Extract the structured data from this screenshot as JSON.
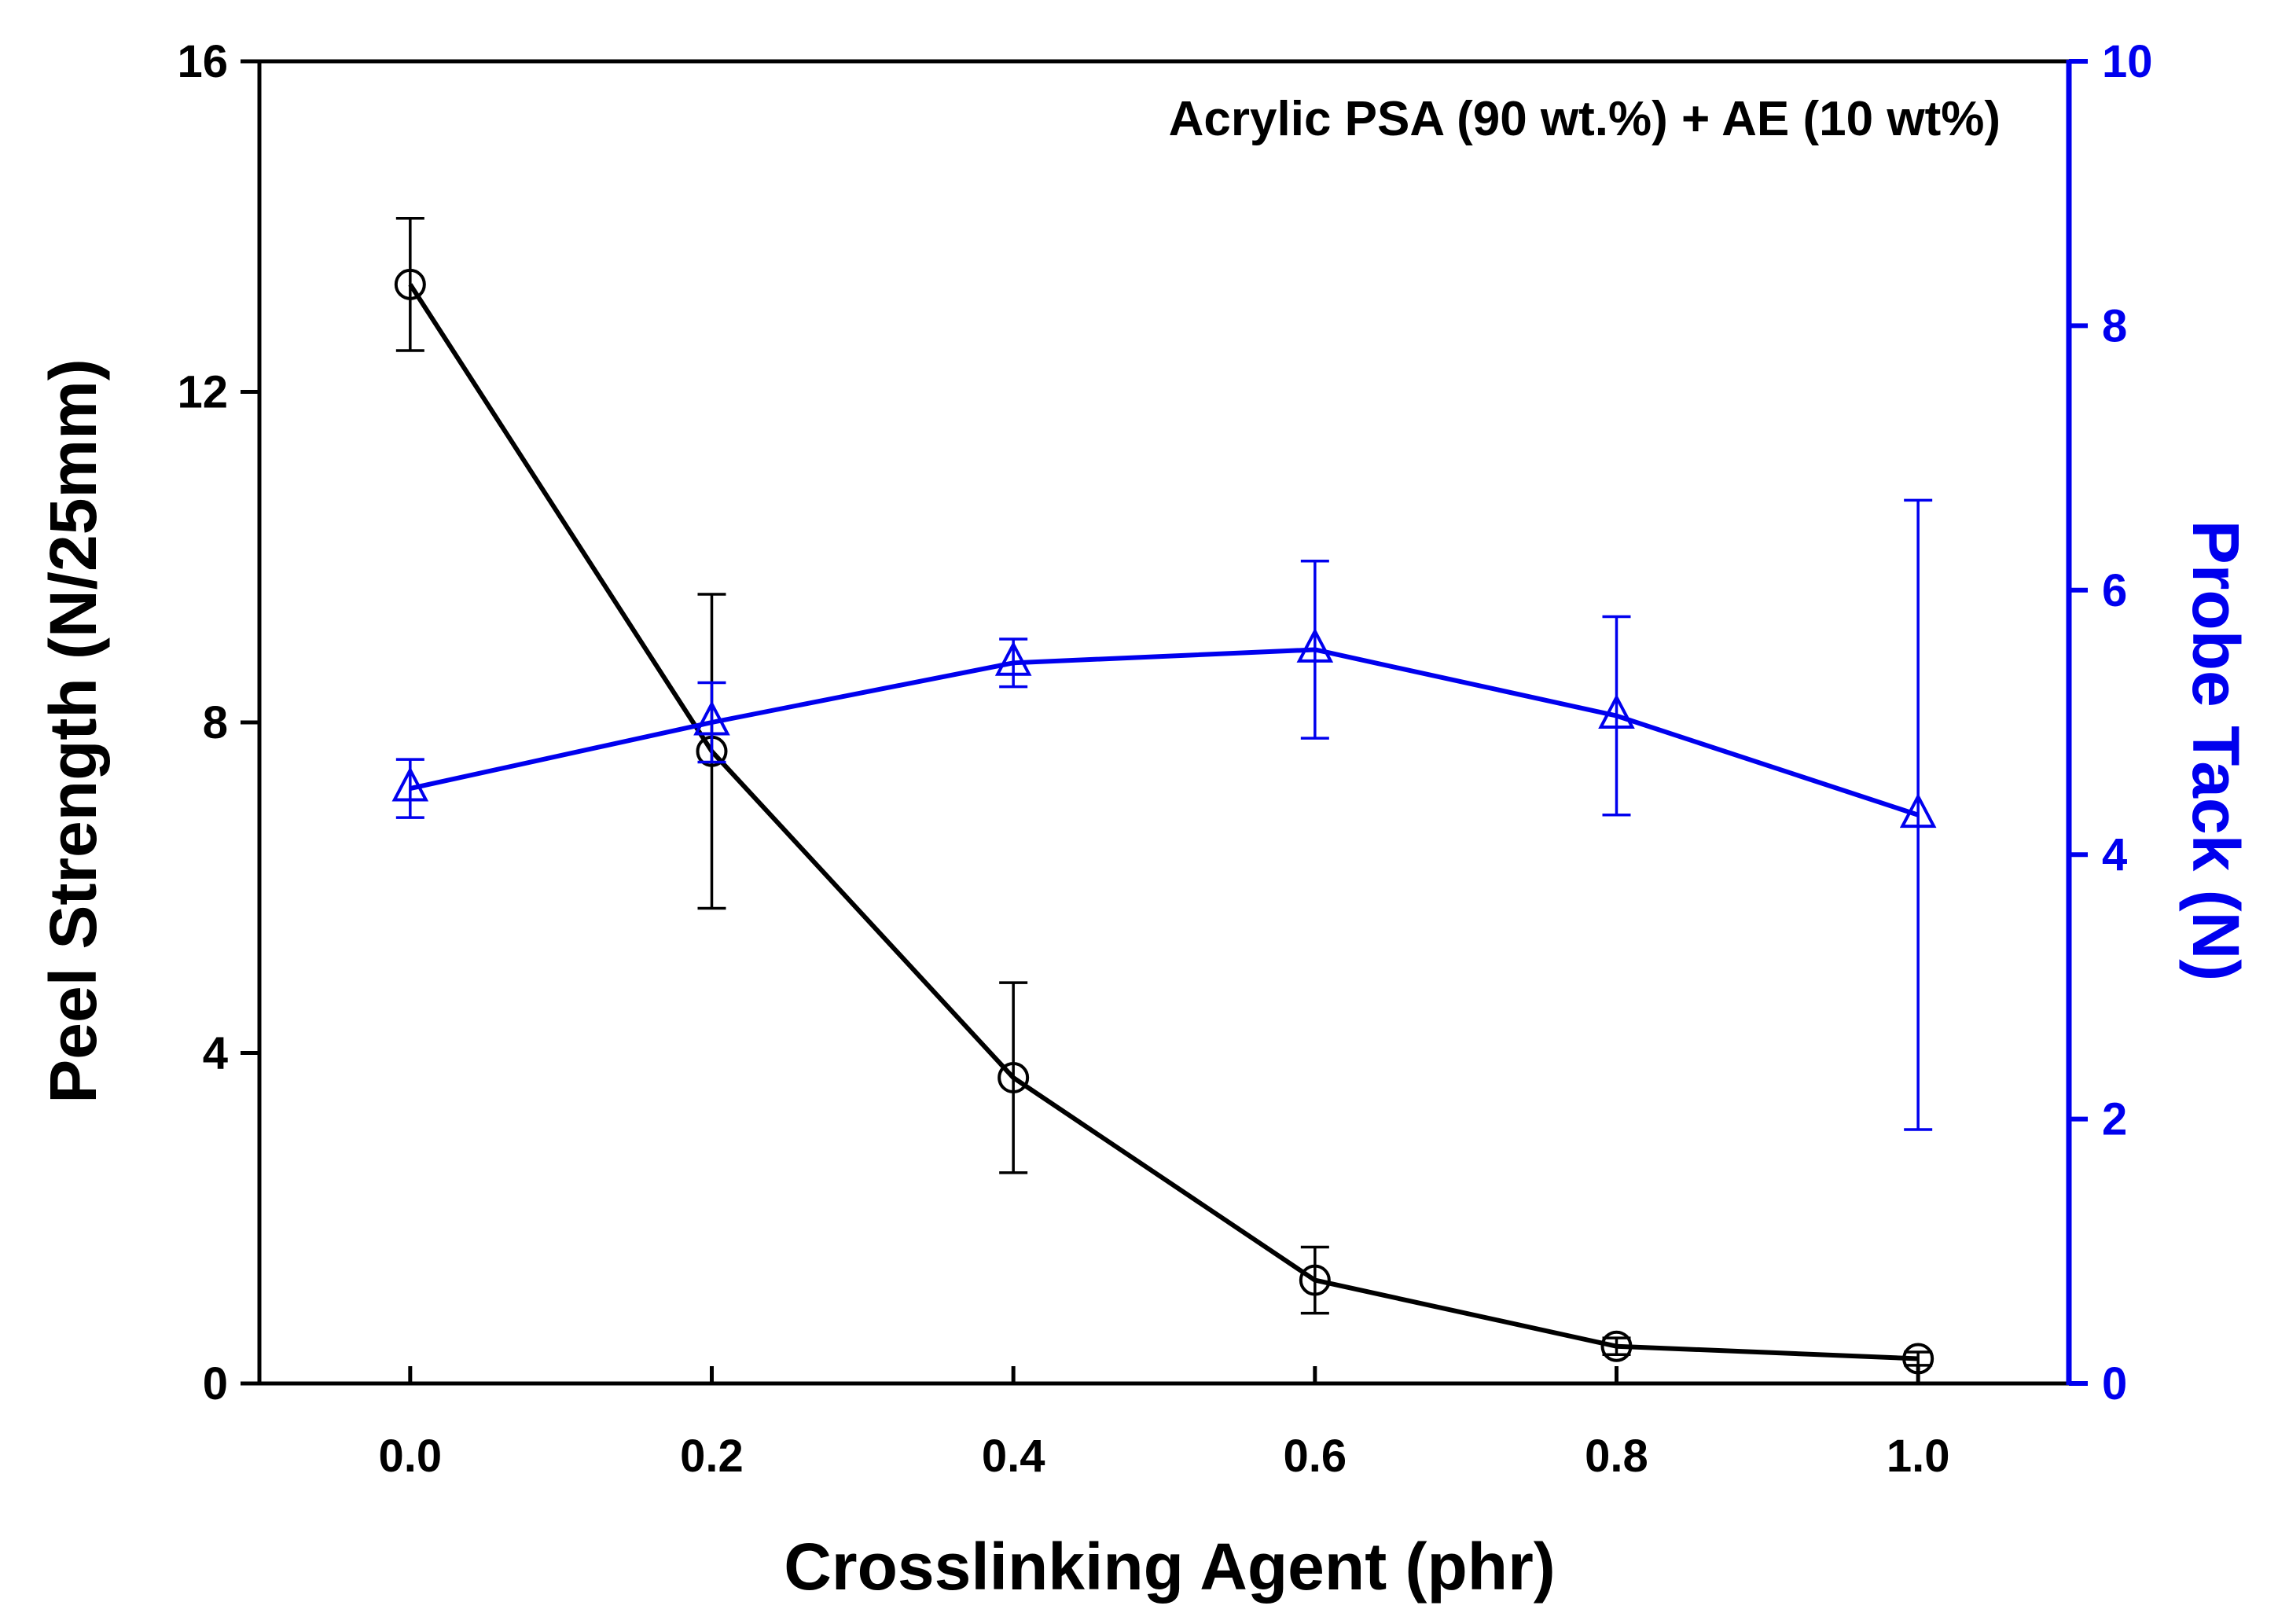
{
  "chart_data": {
    "type": "line",
    "annotation": "Acrylic PSA (90 wt.%) + AE (10 wt%)",
    "xlabel": "Crosslinking Agent (phr)",
    "ylabel_left": "Peel Strength (N/25mm)",
    "ylabel_right": "Probe Tack (N)",
    "xlim": [
      -0.1,
      1.1
    ],
    "ylim_left": [
      0,
      16
    ],
    "ylim_right": [
      0,
      10
    ],
    "x_ticks": [
      0.0,
      0.2,
      0.4,
      0.6,
      0.8,
      1.0
    ],
    "x_tick_labels": [
      "0.0",
      "0.2",
      "0.4",
      "0.6",
      "0.8",
      "1.0"
    ],
    "y_left_ticks": [
      0,
      4,
      8,
      12,
      16
    ],
    "y_left_tick_labels": [
      "0",
      "4",
      "8",
      "12",
      "16"
    ],
    "y_right_ticks": [
      0,
      2,
      4,
      6,
      8,
      10
    ],
    "y_right_tick_labels": [
      "0",
      "2",
      "4",
      "6",
      "8",
      "10"
    ],
    "grid": false,
    "colors": {
      "left_axis": "#000000",
      "right_axis": "#0000ee"
    },
    "series": [
      {
        "name": "Peel Strength",
        "axis": "left",
        "marker": "circle",
        "color": "#000000",
        "x": [
          0.0,
          0.2,
          0.4,
          0.6,
          0.8,
          1.0
        ],
        "y": [
          13.3,
          7.65,
          3.7,
          1.25,
          0.45,
          0.3
        ],
        "err": [
          0.8,
          1.9,
          1.15,
          0.4,
          0.1,
          0.08
        ]
      },
      {
        "name": "Probe Tack",
        "axis": "right",
        "marker": "triangle",
        "color": "#0000ee",
        "x": [
          0.0,
          0.2,
          0.4,
          0.6,
          0.8,
          1.0
        ],
        "y": [
          4.5,
          5.0,
          5.45,
          5.55,
          5.05,
          4.3
        ],
        "err": [
          0.22,
          0.3,
          0.18,
          0.67,
          0.75,
          2.38
        ]
      }
    ]
  }
}
